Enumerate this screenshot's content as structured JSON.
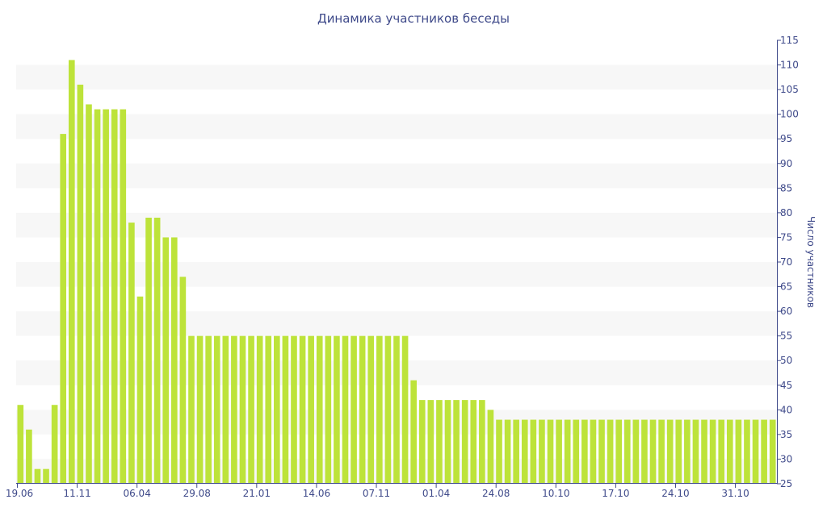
{
  "chart_data": {
    "type": "bar",
    "title": "Динамика участников беседы",
    "ylabel": "Число участников",
    "xlabel": "",
    "ylim": [
      25,
      115
    ],
    "y_ticks": [
      25,
      30,
      35,
      40,
      45,
      50,
      55,
      60,
      65,
      70,
      75,
      80,
      85,
      90,
      95,
      100,
      105,
      110,
      115
    ],
    "y_axis_side": "right",
    "grid": "alternating horizontal bands",
    "bar_color": "#bde33a",
    "band_color": "#f7f7f7",
    "text_color": "#3f4a8a",
    "x_tick_labels": [
      "19.06",
      "11.11",
      "06.04",
      "29.08",
      "21.01",
      "14.06",
      "07.11",
      "01.04",
      "24.08",
      "10.10",
      "17.10",
      "24.10",
      "31.10"
    ],
    "x_tick_bar_index": [
      0,
      7,
      14,
      21,
      28,
      35,
      42,
      49,
      56,
      63,
      70,
      77,
      84
    ],
    "values": [
      41,
      36,
      28,
      28,
      41,
      96,
      111,
      106,
      102,
      101,
      101,
      101,
      101,
      78,
      63,
      79,
      79,
      75,
      75,
      67,
      55,
      55,
      55,
      55,
      55,
      55,
      55,
      55,
      55,
      55,
      55,
      55,
      55,
      55,
      55,
      55,
      55,
      55,
      55,
      55,
      55,
      55,
      55,
      55,
      55,
      55,
      46,
      42,
      42,
      42,
      42,
      42,
      42,
      42,
      42,
      40,
      38,
      38,
      38,
      38,
      38,
      38,
      38,
      38,
      38,
      38,
      38,
      38,
      38,
      38,
      38,
      38,
      38,
      38,
      38,
      38,
      38,
      38,
      38,
      38,
      38,
      38,
      38,
      38,
      38,
      38,
      38,
      38,
      38
    ]
  }
}
